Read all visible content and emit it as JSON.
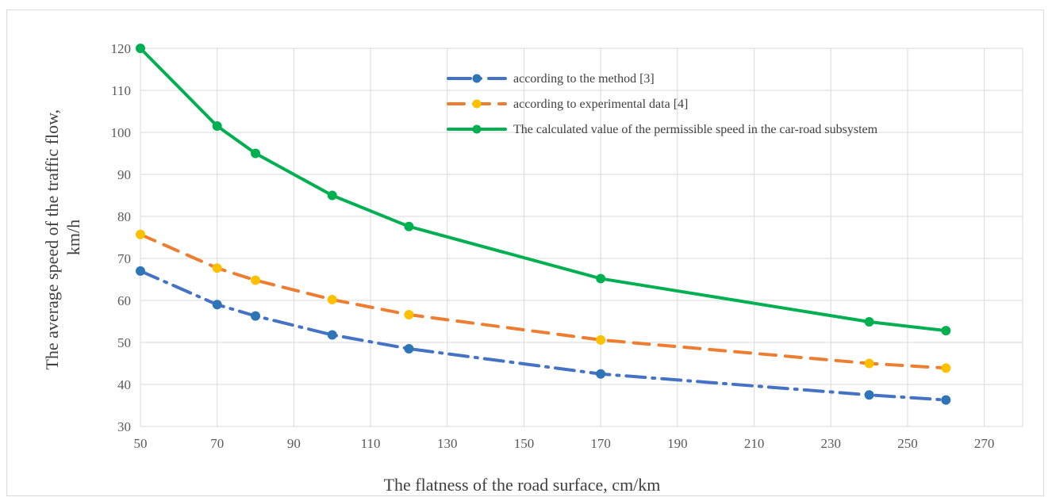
{
  "chart_data": {
    "type": "line",
    "xlabel": "The flatness of the road surface, cm/km",
    "ylabel_lines": [
      "The average speed of the traffic flow,",
      "km/h"
    ],
    "xlim": [
      50,
      280
    ],
    "ylim": [
      30,
      120
    ],
    "xticks": [
      50,
      70,
      90,
      110,
      130,
      150,
      170,
      190,
      210,
      230,
      250,
      270
    ],
    "yticks": [
      30,
      40,
      50,
      60,
      70,
      80,
      90,
      100,
      110,
      120
    ],
    "grid": true,
    "legend_position": "top-right",
    "x": [
      50,
      70,
      80,
      100,
      120,
      170,
      240,
      260
    ],
    "series": [
      {
        "name": "according to the method [3]",
        "values": [
          67,
          59,
          56.3,
          51.8,
          48.5,
          42.5,
          37.5,
          36.3
        ],
        "line_color": "#4472C4",
        "marker_color": "#2E75B6",
        "style": "dash-dot"
      },
      {
        "name": "according to experimental data [4]",
        "values": [
          75.7,
          67.7,
          64.8,
          60.2,
          56.6,
          50.6,
          45,
          43.9
        ],
        "line_color": "#ED7D31",
        "marker_color": "#FFC000",
        "style": "dash"
      },
      {
        "name": "The calculated value of the permissible speed in the car-road subsystem",
        "values": [
          120,
          101.5,
          95,
          85,
          77.6,
          65.2,
          54.9,
          52.8
        ],
        "line_color": "#00B050",
        "marker_color": "#00B050",
        "style": "solid"
      }
    ]
  }
}
